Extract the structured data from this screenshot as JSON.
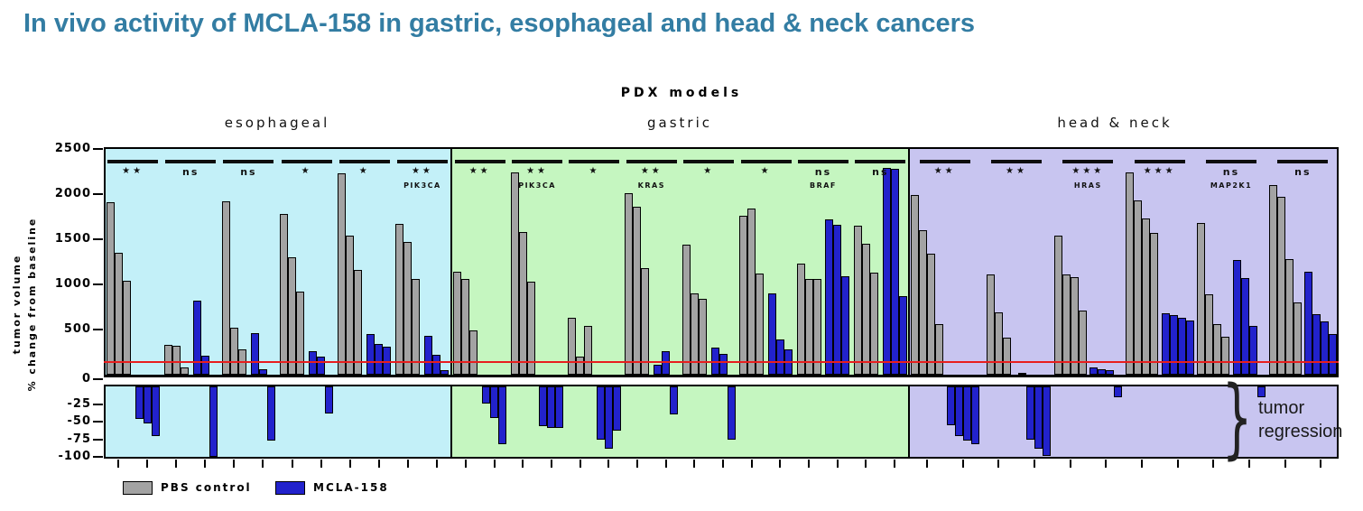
{
  "title": "In vivo activity of MCLA-158 in gastric, esophageal and head & neck cancers",
  "chart_data": {
    "type": "bar",
    "title": "PDX models",
    "ylabel_line1": "tumor volume",
    "ylabel_line2": "% change from baseline",
    "y_axis": {
      "positive_ticks": [
        2500,
        2000,
        1500,
        1000,
        500,
        0
      ],
      "negative_ticks": [
        -25,
        -50,
        -75,
        -100
      ],
      "positive_max": 2500,
      "negative_min": -100,
      "axis_break": true
    },
    "reference_line": {
      "value": 150,
      "color": "#e81e1e"
    },
    "legend": [
      {
        "label": "PBS control",
        "color": "#a3a3a3"
      },
      {
        "label": "MCLA-158",
        "color": "#2222cc"
      }
    ],
    "annotation": {
      "brace": "}",
      "line1": "tumor",
      "line2": "regression"
    },
    "panels": [
      {
        "name": "esophageal",
        "bg": "#c3f0f8",
        "groups": [
          {
            "sig": "**",
            "gene": "",
            "pbs": [
              1915,
              1350,
              1040
            ],
            "mcla": [
              -46,
              -52,
              -71
            ]
          },
          {
            "sig": "ns",
            "gene": "",
            "pbs": [
              335,
              320,
              85
            ],
            "mcla": [
              825,
              215,
              -100
            ]
          },
          {
            "sig": "ns",
            "gene": "",
            "pbs": [
              1925,
              525,
              280
            ],
            "mcla": [
              460,
              65,
              -77
            ]
          },
          {
            "sig": "*",
            "gene": "",
            "pbs": [
              1785,
              1300,
              925
            ],
            "mcla": [
              260,
              200,
              -39
            ]
          },
          {
            "sig": "*",
            "gene": "",
            "pbs": [
              2230,
              1540,
              1160
            ],
            "mcla": [
              455,
              345,
              310
            ]
          },
          {
            "sig": "**",
            "gene": "PIK3CA",
            "pbs": [
              1675,
              1470,
              1060
            ],
            "mcla": [
              435,
              220,
              50
            ]
          }
        ]
      },
      {
        "name": "gastric",
        "bg": "#c5f6c0",
        "groups": [
          {
            "sig": "**",
            "gene": "",
            "pbs": [
              1145,
              1065,
              495
            ],
            "mcla": [
              -24,
              -45,
              -82
            ]
          },
          {
            "sig": "**",
            "gene": "PIK3CA",
            "pbs": [
              2240,
              1585,
              1035
            ],
            "mcla": [
              -57,
              -59,
              -59
            ]
          },
          {
            "sig": "*",
            "gene": "",
            "pbs": [
              635,
              205,
              545
            ],
            "mcla": [
              -76,
              -88,
              -63
            ]
          },
          {
            "sig": "**",
            "gene": "KRAS",
            "pbs": [
              2015,
              1865,
              1180
            ],
            "mcla": [
              110,
              265,
              -40
            ]
          },
          {
            "sig": "*",
            "gene": "",
            "pbs": [
              1445,
              905,
              845
            ],
            "mcla": [
              300,
              230,
              -76
            ]
          },
          {
            "sig": "*",
            "gene": "",
            "pbs": [
              1765,
              1845,
              1125
            ],
            "mcla": [
              905,
              390,
              280
            ]
          },
          {
            "sig": "ns",
            "gene": "BRAF",
            "pbs": [
              1235,
              1065,
              1065
            ],
            "mcla": [
              1725,
              1665,
              1095
            ]
          },
          {
            "sig": "ns",
            "gene": "",
            "pbs": [
              1655,
              1455,
              1135
            ],
            "mcla": [
              2290,
              2280,
              875
            ]
          }
        ]
      },
      {
        "name": "head & neck",
        "bg": "#c8c5f0",
        "groups": [
          {
            "sig": "**",
            "gene": "",
            "pbs": [
              1990,
              1600,
              1345,
              560
            ],
            "mcla": [
              -55,
              -70,
              -77,
              -82
            ]
          },
          {
            "sig": "**",
            "gene": "",
            "pbs": [
              1110,
              695,
              415
            ],
            "mcla": [
              20,
              -76,
              -89,
              -99
            ]
          },
          {
            "sig": "***",
            "gene": "HRAS",
            "pbs": [
              1540,
              1110,
              1085,
              710
            ],
            "mcla": [
              80,
              60,
              50,
              -16
            ]
          },
          {
            "sig": "***",
            "gene": "",
            "pbs": [
              2245,
              1930,
              1735,
              1575
            ],
            "mcla": [
              685,
              660,
              635,
              600
            ]
          },
          {
            "sig": "ns",
            "gene": "MAP2K1",
            "pbs": [
              1685,
              895,
              560,
              420
            ],
            "mcla": [
              1275,
              1075,
              540,
              -15
            ]
          },
          {
            "sig": "ns",
            "gene": "",
            "pbs": [
              2100,
              1970,
              1285,
              805
            ],
            "mcla": [
              1145,
              675,
              590,
              450
            ]
          }
        ]
      }
    ]
  }
}
